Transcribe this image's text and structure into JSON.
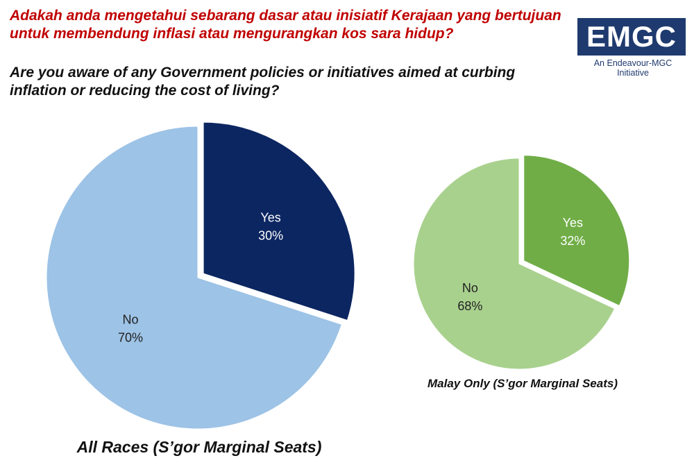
{
  "header": {
    "title_malay": "Adakah anda mengetahui sebarang dasar atau inisiatif Kerajaan yang bertujuan untuk membendung inflasi atau mengurangkan kos sara hidup?",
    "title_english": "Are you aware of any Government policies or initiatives aimed at curbing inflation or reducing the cost of living?"
  },
  "logo": {
    "text": "EMGC",
    "tagline": "An Endeavour-MGC Initiative"
  },
  "colors": {
    "title_malay": "#c00000",
    "logo_bg": "#1f3a6e"
  },
  "chart_data": [
    {
      "type": "pie",
      "title": "All Races (S’gor Marginal Seats)",
      "slices": [
        {
          "label": "Yes",
          "value": 30,
          "display": "30%",
          "color": "#0c2661",
          "text_color": "#ffffff",
          "exploded": true
        },
        {
          "label": "No",
          "value": 70,
          "display": "70%",
          "color": "#9dc3e6",
          "text_color": "#222222",
          "exploded": false
        }
      ]
    },
    {
      "type": "pie",
      "title": "Malay Only (S’gor Marginal Seats)",
      "slices": [
        {
          "label": "Yes",
          "value": 32,
          "display": "32%",
          "color": "#70ad47",
          "text_color": "#ffffff",
          "exploded": true
        },
        {
          "label": "No",
          "value": 68,
          "display": "68%",
          "color": "#a9d18e",
          "text_color": "#222222",
          "exploded": false
        }
      ]
    }
  ]
}
